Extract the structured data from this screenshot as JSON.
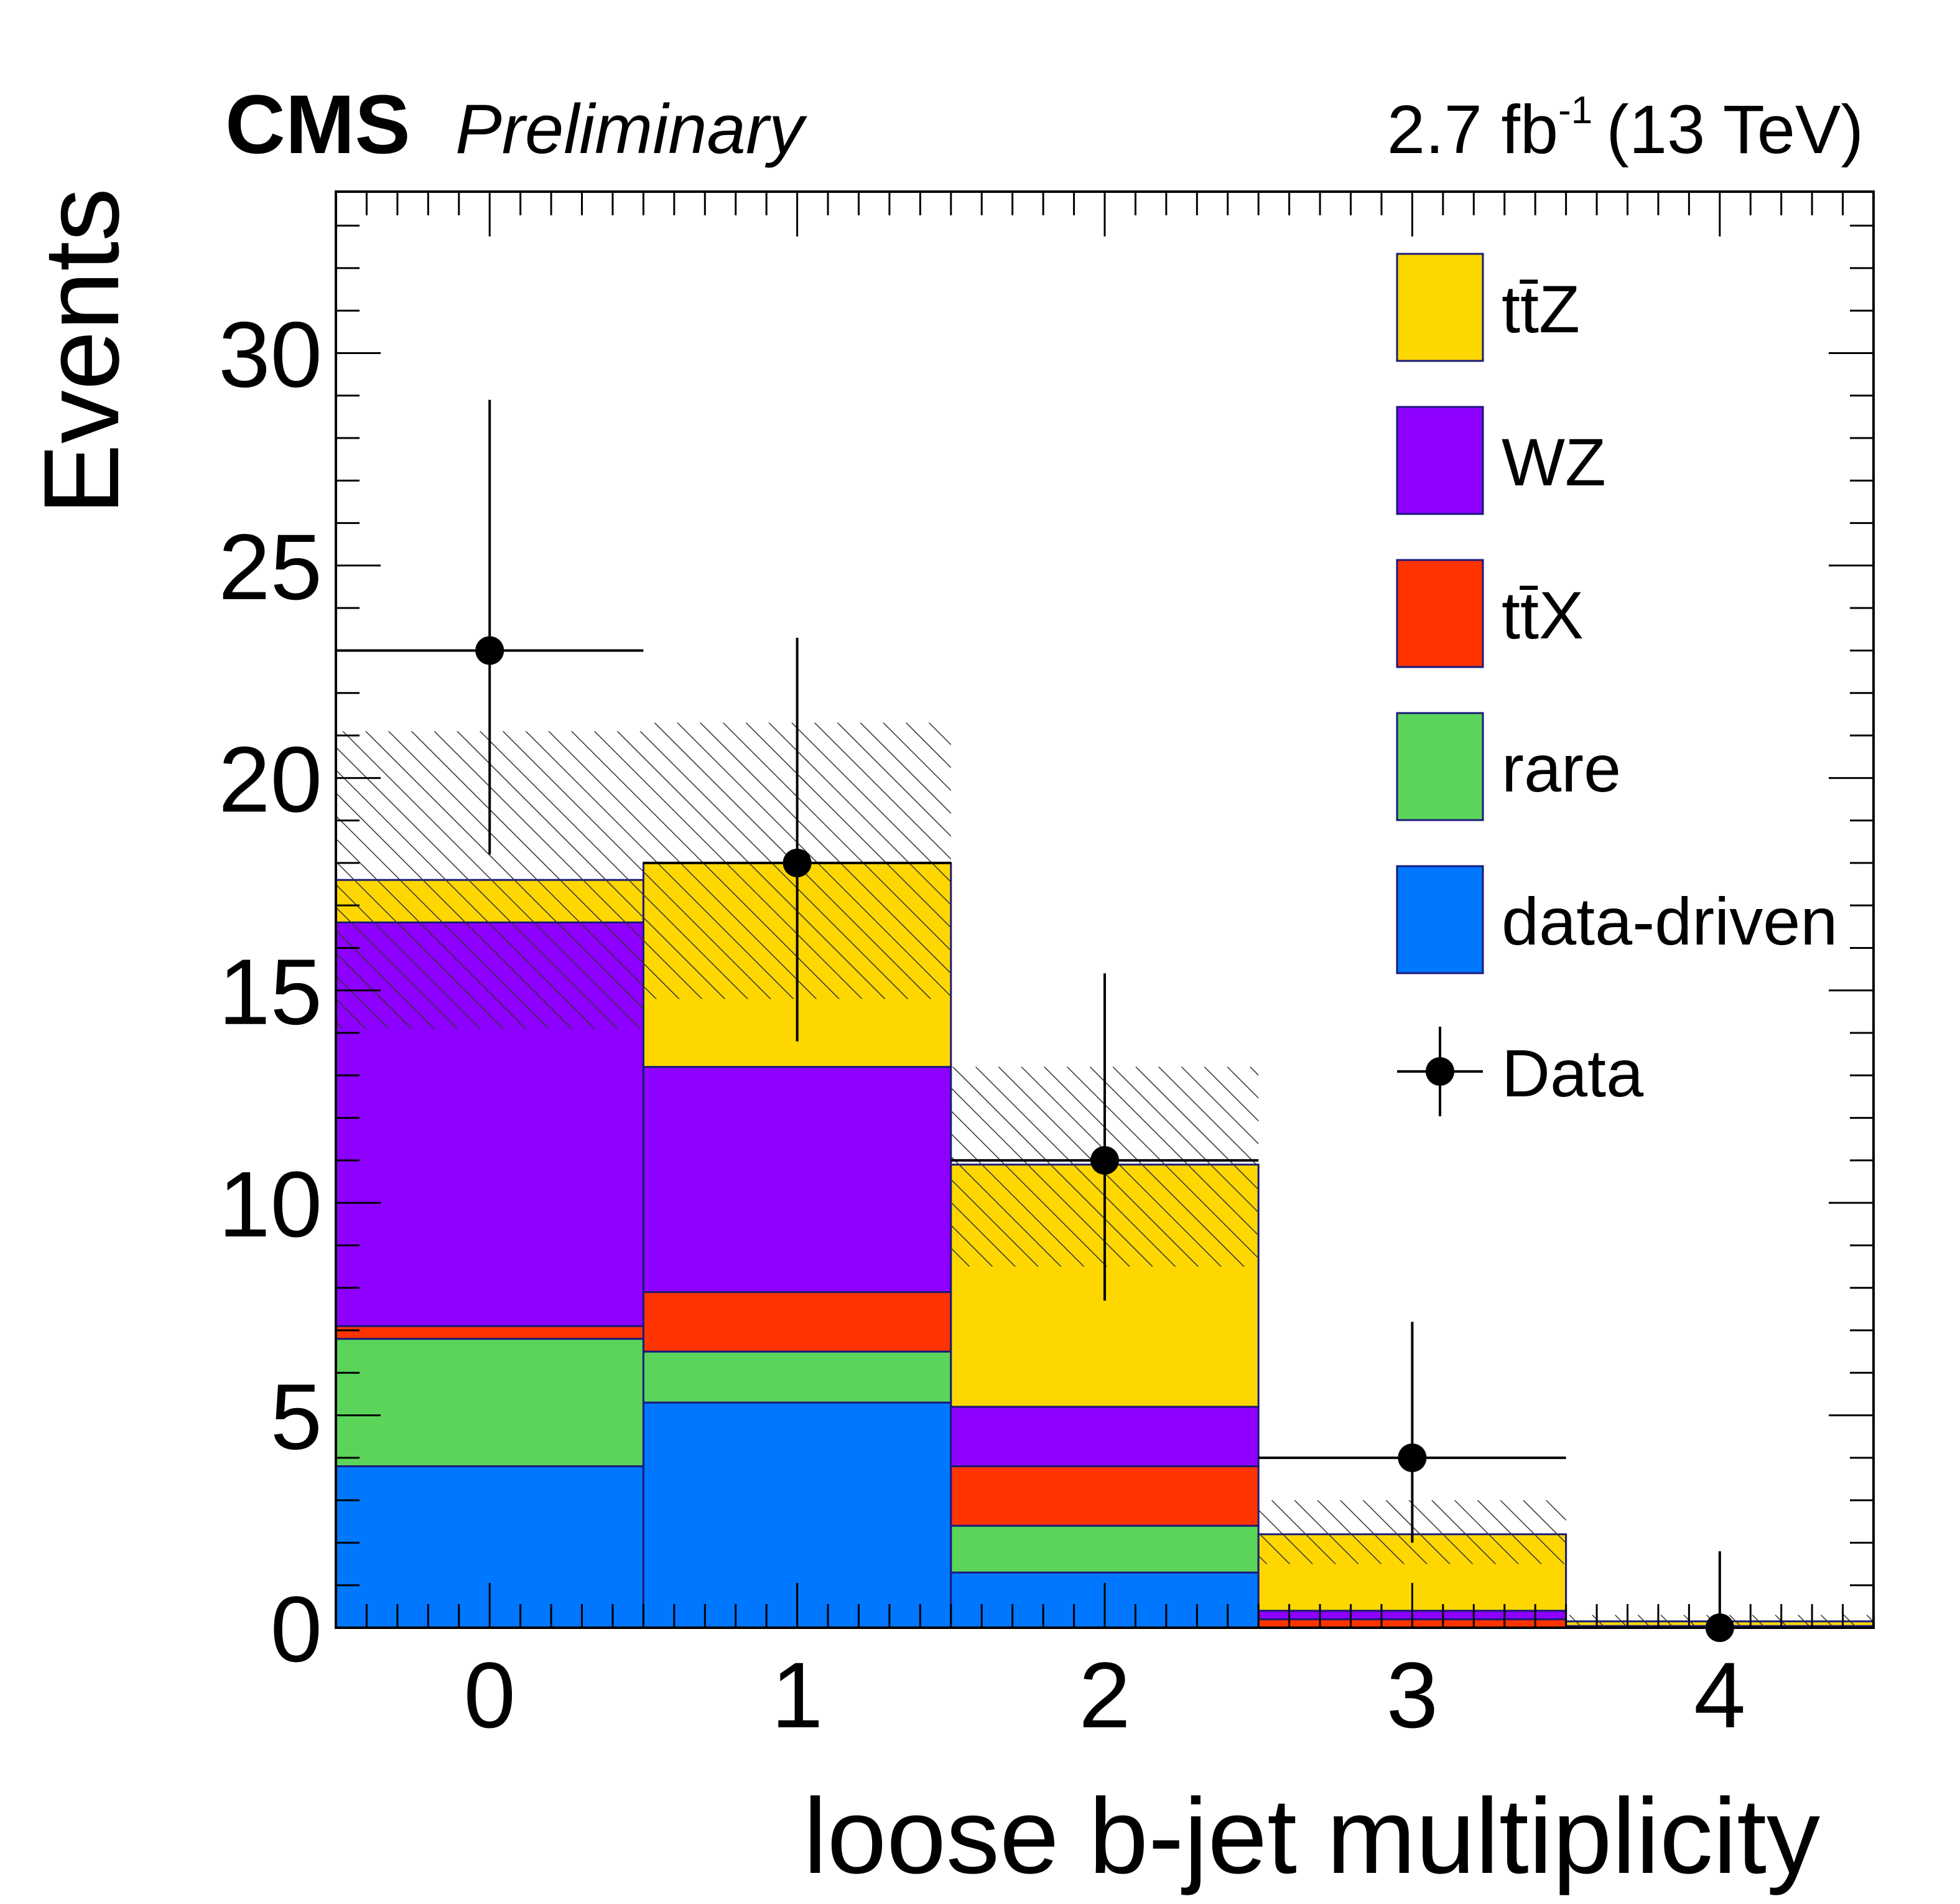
{
  "chart_data": {
    "type": "bar",
    "stacked": true,
    "experiment": "CMS",
    "status": "Preliminary",
    "luminosity_main": "2.7 fb",
    "luminosity_exp": "-1",
    "energy": "(13 TeV)",
    "xlabel": "loose b-jet multiplicity",
    "ylabel": "Events",
    "categories": [
      "0",
      "1",
      "2",
      "3",
      "4"
    ],
    "x_tick_labels": [
      "0",
      "1",
      "2",
      "3",
      "4"
    ],
    "y_tick_labels": [
      "0",
      "5",
      "10",
      "15",
      "20",
      "25",
      "30"
    ],
    "y_ticks": [
      0,
      5,
      10,
      15,
      20,
      25,
      30
    ],
    "xlim": [
      -0.5,
      4.5
    ],
    "ylim": [
      0,
      33.8
    ],
    "grid": false,
    "legend_position": "top-right",
    "series": [
      {
        "name": "data-driven",
        "color": "#0077ff",
        "values": [
          3.8,
          5.3,
          1.3,
          0.0,
          0.0
        ]
      },
      {
        "name": "rare",
        "color": "#5ad55a",
        "values": [
          3.0,
          1.2,
          1.1,
          0.0,
          0.0
        ]
      },
      {
        "name": "tt̄X",
        "color": "#ff3300",
        "values": [
          0.3,
          1.4,
          1.4,
          0.2,
          0.02
        ]
      },
      {
        "name": "WZ",
        "color": "#8e00ff",
        "values": [
          9.5,
          5.3,
          1.4,
          0.2,
          0.02
        ]
      },
      {
        "name": "tt̄Z",
        "color": "#ffd700",
        "values": [
          1.0,
          4.8,
          5.7,
          1.8,
          0.11
        ]
      }
    ],
    "uncertainty_band": {
      "name": "",
      "low": [
        14.1,
        14.8,
        8.5,
        1.5,
        0.0
      ],
      "high": [
        21.1,
        21.3,
        13.2,
        3.0,
        0.3
      ]
    },
    "data": {
      "name": "Data",
      "values": [
        23,
        18,
        11,
        4,
        0
      ],
      "err_low": [
        4.8,
        4.2,
        3.3,
        2.0,
        0.0
      ],
      "err_high": [
        5.9,
        5.3,
        4.4,
        3.2,
        1.8
      ]
    },
    "legend_order": [
      "tt̄Z",
      "WZ",
      "tt̄X",
      "rare",
      "data-driven",
      "Data"
    ]
  }
}
